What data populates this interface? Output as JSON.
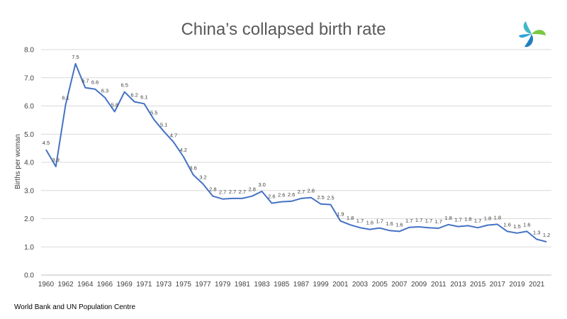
{
  "title": "China’s collapsed birth rate",
  "source": "World Bank and UN Population Centre",
  "logo_icon": "swirl-logo-icon",
  "chart_data": {
    "type": "line",
    "title": "China’s collapsed birth rate",
    "xlabel": "",
    "ylabel": "Births per woman",
    "ylim": [
      0,
      8
    ],
    "yticks": [
      0,
      1,
      2,
      3,
      4,
      5,
      6,
      7,
      8
    ],
    "ytick_labels": [
      "0.0",
      "1.0",
      "2.0",
      "3.0",
      "4.0",
      "5.0",
      "6.0",
      "7.0",
      "8.0"
    ],
    "grid": true,
    "legend": "none",
    "line_color": "#4472c4",
    "x": [
      1960,
      1961,
      1962,
      1963,
      1964,
      1965,
      1966,
      1967,
      1969,
      1970,
      1971,
      1972,
      1973,
      1974,
      1975,
      1976,
      1977,
      1978,
      1979,
      1980,
      1981,
      1982,
      1983,
      1984,
      1985,
      1986,
      1987,
      1988,
      1999,
      2000,
      2001,
      2002,
      2003,
      2004,
      2005,
      2006,
      2007,
      2008,
      2009,
      2010,
      2011,
      2012,
      2013,
      2014,
      2015,
      2016,
      2017,
      2018,
      2019,
      2020,
      2021,
      2022
    ],
    "x_tick_labels": [
      "1960",
      "1962",
      "1964",
      "1966",
      "1969",
      "1971",
      "1973",
      "1975",
      "1977",
      "1979",
      "1981",
      "1983",
      "1985",
      "1987",
      "1999",
      "2001",
      "2003",
      "2005",
      "2007",
      "2009",
      "2011",
      "2013",
      "2015",
      "2017",
      "2019",
      "2021"
    ],
    "values": [
      4.45,
      3.85,
      6.05,
      7.5,
      6.65,
      6.6,
      6.3,
      5.8,
      6.5,
      6.15,
      6.08,
      5.52,
      5.1,
      4.72,
      4.2,
      3.56,
      3.23,
      2.8,
      2.7,
      2.72,
      2.72,
      2.8,
      2.97,
      2.55,
      2.6,
      2.62,
      2.72,
      2.75,
      2.52,
      2.5,
      1.92,
      1.78,
      1.68,
      1.62,
      1.67,
      1.58,
      1.55,
      1.69,
      1.71,
      1.68,
      1.66,
      1.79,
      1.72,
      1.75,
      1.68,
      1.77,
      1.8,
      1.55,
      1.49,
      1.55,
      1.27,
      1.18
    ],
    "data_labels": [
      "4.5",
      "3.9",
      "6.1",
      "7.5",
      "6.7",
      "6.6",
      "6.3",
      "5.8",
      "6.5",
      "6.2",
      "6.1",
      "5.5",
      "5.1",
      "4.7",
      "4.2",
      "3.6",
      "3.2",
      "2.8",
      "2.7",
      "2.7",
      "2.7",
      "2.8",
      "3.0",
      "2.6",
      "2.6",
      "2.6",
      "2.7",
      "2.8",
      "2.5",
      "2.5",
      "1.9",
      "1.8",
      "1.7",
      "1.6",
      "1.7",
      "1.6",
      "1.6",
      "1.7",
      "1.7",
      "1.7",
      "1.7",
      "1.8",
      "1.7",
      "1.8",
      "1.7",
      "1.8",
      "1.8",
      "1.6",
      "1.5",
      "1.6",
      "1.3",
      "1.2"
    ]
  }
}
